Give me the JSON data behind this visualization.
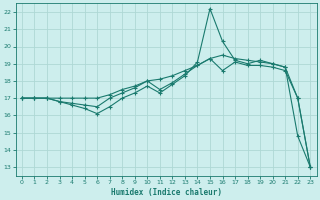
{
  "xlabel": "Humidex (Indice chaleur)",
  "bg_color": "#cdeeed",
  "line_color": "#1a7a6e",
  "grid_color": "#aed8d5",
  "xlim": [
    -0.5,
    23.5
  ],
  "ylim": [
    12.5,
    22.5
  ],
  "xticks": [
    0,
    1,
    2,
    3,
    4,
    5,
    6,
    7,
    8,
    9,
    10,
    11,
    12,
    13,
    14,
    15,
    16,
    17,
    18,
    19,
    20,
    21,
    22,
    23
  ],
  "yticks": [
    13,
    14,
    15,
    16,
    17,
    18,
    19,
    20,
    21,
    22
  ],
  "line1_x": [
    0,
    1,
    2,
    3,
    4,
    5,
    6,
    7,
    8,
    9,
    10,
    11,
    12,
    13,
    14,
    15,
    16,
    17,
    18,
    19,
    20,
    21,
    22,
    23
  ],
  "line1_y": [
    17.0,
    17.0,
    17.0,
    17.0,
    17.0,
    17.0,
    17.0,
    17.2,
    17.5,
    17.7,
    18.0,
    18.1,
    18.3,
    18.6,
    18.9,
    19.3,
    19.5,
    19.3,
    19.2,
    19.1,
    19.0,
    18.8,
    17.0,
    13.0
  ],
  "line2_x": [
    0,
    1,
    2,
    3,
    4,
    5,
    6,
    7,
    8,
    9,
    10,
    11,
    12,
    13,
    14,
    15,
    16,
    17,
    18,
    19,
    20,
    21,
    22,
    23
  ],
  "line2_y": [
    17.0,
    17.0,
    17.0,
    16.8,
    16.7,
    16.6,
    16.5,
    17.0,
    17.3,
    17.6,
    18.0,
    17.5,
    17.9,
    18.4,
    18.9,
    19.3,
    18.6,
    19.1,
    18.9,
    18.9,
    18.8,
    18.6,
    17.0,
    13.0
  ],
  "line3_x": [
    0,
    1,
    2,
    3,
    4,
    5,
    6,
    7,
    8,
    9,
    10,
    11,
    12,
    13,
    14,
    15,
    16,
    17,
    18,
    19,
    20,
    21,
    22,
    23
  ],
  "line3_y": [
    17.0,
    17.0,
    17.0,
    16.8,
    16.6,
    16.4,
    16.1,
    16.5,
    17.0,
    17.3,
    17.7,
    17.3,
    17.8,
    18.3,
    19.1,
    22.2,
    20.3,
    19.2,
    19.0,
    19.2,
    19.0,
    18.8,
    14.8,
    13.0
  ],
  "marker": "+",
  "markersize": 3,
  "markeredgewidth": 0.8,
  "linewidth": 0.8
}
